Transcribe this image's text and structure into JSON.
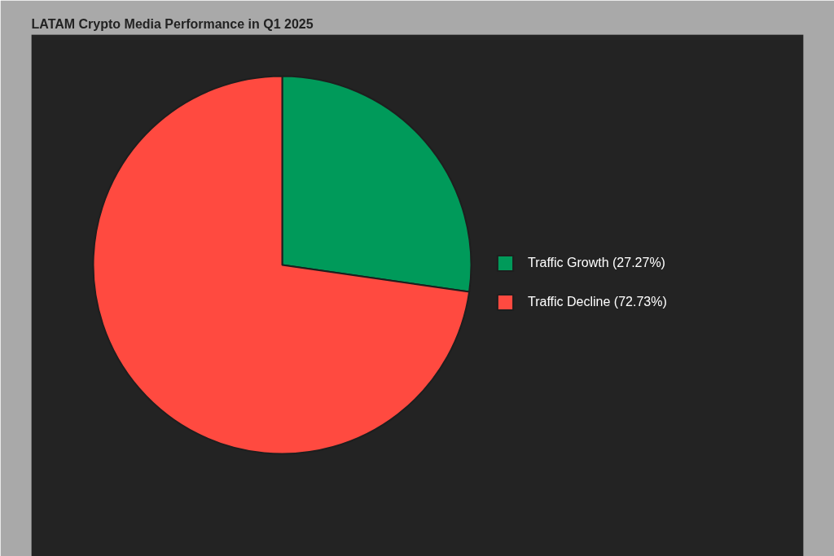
{
  "chart_data": {
    "type": "pie",
    "title": "LATAM Crypto Media Performance in Q1 2025",
    "categories": [
      "Traffic Growth (27.27%)",
      "Traffic Decline (72.73%)"
    ],
    "values": [
      27.27,
      72.73
    ],
    "colors": [
      "#009a5a",
      "#ff4a40"
    ],
    "legend": "right"
  }
}
